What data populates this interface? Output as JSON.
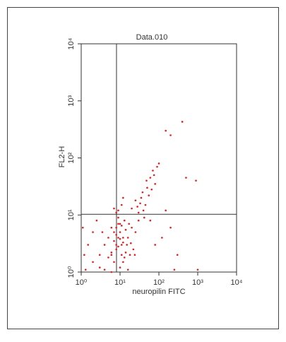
{
  "chart_data": {
    "type": "scatter",
    "title": "Data.010",
    "x_label": "neuropilin FITC",
    "y_label": "FL2-H",
    "log_x": true,
    "log_y": true,
    "color": "#e02020",
    "xlim": [
      1,
      10000
    ],
    "ylim": [
      1,
      10000
    ],
    "xticks": [
      {
        "value": 1,
        "label": "10⁰"
      },
      {
        "value": 10,
        "label": "10¹"
      },
      {
        "value": 100,
        "label": "10²"
      },
      {
        "value": 1000,
        "label": "10³"
      },
      {
        "value": 10000,
        "label": "10⁴"
      }
    ],
    "yticks": [
      {
        "value": 1,
        "label": "10⁰"
      },
      {
        "value": 10,
        "label": "10¹"
      },
      {
        "value": 100,
        "label": "10²"
      },
      {
        "value": 1000,
        "label": "10³"
      },
      {
        "value": 10000,
        "label": "10⁴"
      }
    ],
    "quadrant": {
      "x": 8.1,
      "y": 10.3
    },
    "x": [
      8,
      10,
      6,
      12,
      9,
      7,
      15,
      5,
      11,
      9,
      20,
      4,
      8,
      13,
      6,
      10,
      18,
      3,
      25,
      9,
      7,
      14,
      11,
      16,
      8,
      5,
      30,
      12,
      6,
      10,
      40,
      35,
      50,
      60,
      70,
      45,
      80,
      28,
      55,
      90,
      25,
      38,
      65,
      100,
      48,
      30,
      20,
      75,
      42,
      33,
      150,
      200,
      300,
      120,
      80,
      60,
      250,
      1000,
      500,
      2,
      1.5,
      1.2,
      2.5,
      3,
      4,
      2,
      1.1,
      3.5,
      1.3,
      6,
      9,
      11,
      8,
      12,
      7,
      150,
      900,
      16,
      22,
      17,
      13,
      19,
      24,
      9,
      10,
      8,
      11,
      7,
      14,
      12,
      400,
      200
    ],
    "values": [
      3,
      5,
      2,
      4,
      7,
      1.5,
      3,
      4,
      2,
      9,
      6,
      3,
      2.5,
      8,
      6,
      1.2,
      2,
      2,
      5,
      4,
      3.5,
      5.5,
      3,
      4,
      6,
      1.8,
      8,
      1.5,
      2.2,
      7,
      12,
      20,
      30,
      45,
      60,
      15,
      35,
      14,
      22,
      70,
      18,
      25,
      28,
      80,
      40,
      11,
      13,
      50,
      9,
      16,
      12,
      6,
      2,
      4,
      3,
      8,
      1.1,
      1.1,
      45,
      5,
      3,
      2,
      8,
      1.2,
      1.1,
      1.5,
      6,
      5,
      1.1,
      1,
      12,
      15,
      11,
      20,
      13,
      300,
      40,
      1.1,
      2.5,
      7,
      1.8,
      3.2,
      2,
      2.8,
      3.8,
      4.5,
      6.5,
      5,
      2.2,
      3.3,
      430,
      250
    ]
  }
}
